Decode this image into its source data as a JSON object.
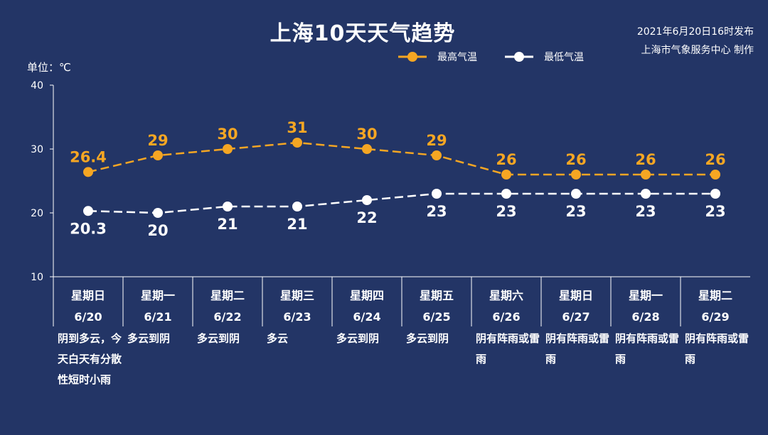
{
  "header": {
    "title": "上海10天天气趋势",
    "publish_line1": "2021年6月20日16时发布",
    "publish_line2": "上海市气象服务中心 制作",
    "unit": "单位：℃"
  },
  "colors": {
    "background": "#233566",
    "high": "#f5a623",
    "low": "#ffffff"
  },
  "chart_data": {
    "type": "line",
    "ylim": [
      10,
      40
    ],
    "yticks": [
      10,
      20,
      30,
      40
    ],
    "grid": false,
    "legend_position": "top-center",
    "categories": [
      "6/20",
      "6/21",
      "6/22",
      "6/23",
      "6/24",
      "6/25",
      "6/26",
      "6/27",
      "6/28",
      "6/29"
    ],
    "weekdays": [
      "星期日",
      "星期一",
      "星期二",
      "星期三",
      "星期四",
      "星期五",
      "星期六",
      "星期日",
      "星期一",
      "星期二"
    ],
    "series": [
      {
        "name": "最高气温",
        "values": [
          26.4,
          29,
          30,
          31,
          30,
          29,
          26,
          26,
          26,
          26
        ],
        "labels": [
          "26.4",
          "29",
          "30",
          "31",
          "30",
          "29",
          "26",
          "26",
          "26",
          "26"
        ]
      },
      {
        "name": "最低气温",
        "values": [
          20.3,
          20,
          21,
          21,
          22,
          23,
          23,
          23,
          23,
          23
        ],
        "labels": [
          "20.3",
          "20",
          "21",
          "21",
          "22",
          "23",
          "23",
          "23",
          "23",
          "23"
        ]
      }
    ],
    "weather": [
      "阴到多云，今天白天有分散性短时小雨",
      "多云到阴",
      "多云到阴",
      "多云",
      "多云到阴",
      "多云到阴",
      "阴有阵雨或雷雨",
      "阴有阵雨或雷雨",
      "阴有阵雨或雷雨",
      "阴有阵雨或雷雨"
    ]
  }
}
